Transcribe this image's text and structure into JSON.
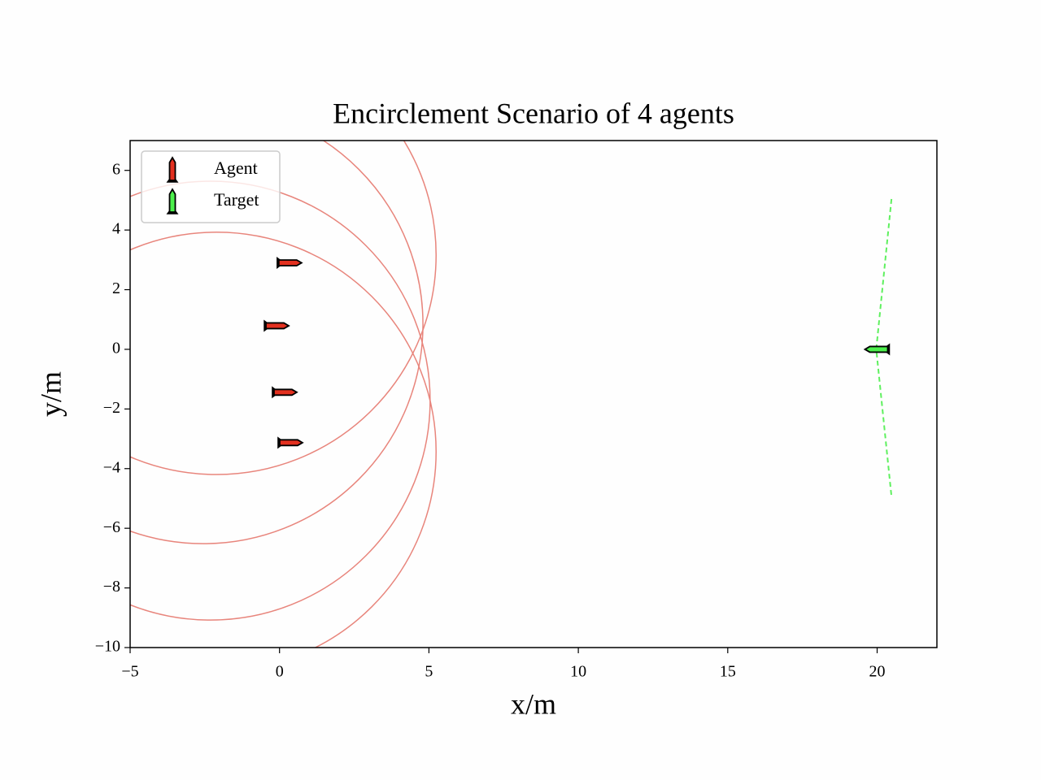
{
  "chart_data": {
    "type": "scatter",
    "title": "Encirclement Scenario of 4 agents",
    "x_label": "x/m",
    "y_label": "y/m",
    "xlim": [
      -5,
      22
    ],
    "ylim": [
      -10,
      7
    ],
    "xticks": [
      {
        "value": -5,
        "label": "−5"
      },
      0,
      5,
      10,
      15,
      20
    ],
    "yticks": [
      {
        "value": -10,
        "label": "−10"
      },
      {
        "value": -8,
        "label": "−8"
      },
      {
        "value": -6,
        "label": "−6"
      },
      {
        "value": -4,
        "label": "−4"
      },
      {
        "value": -2,
        "label": "−2"
      },
      0,
      2,
      4,
      6
    ],
    "legend": "upper left",
    "series": [
      {
        "name": "Agent",
        "color": "#e3301f",
        "heading": 0,
        "x": [
          0.33,
          -0.1,
          0.17,
          0.36
        ],
        "y": [
          2.9,
          0.79,
          -1.44,
          -3.13
        ]
      },
      {
        "name": "Target",
        "color": "#4cf04c",
        "heading": 180,
        "x": [
          20.0
        ],
        "y": [
          0.0
        ]
      }
    ],
    "circles": {
      "color": "#e8857c",
      "x": [
        -2.11,
        -2.55,
        -2.31,
        -2.11
      ],
      "y": [
        3.16,
        0.84,
        -1.72,
        -3.43
      ],
      "r": [
        7.35,
        7.35,
        7.35,
        7.35
      ]
    },
    "target_path": {
      "color": "#5ef05e",
      "x": [
        20.48,
        19.97,
        20.48
      ],
      "y": [
        5.04,
        0.0,
        -4.93
      ]
    }
  }
}
